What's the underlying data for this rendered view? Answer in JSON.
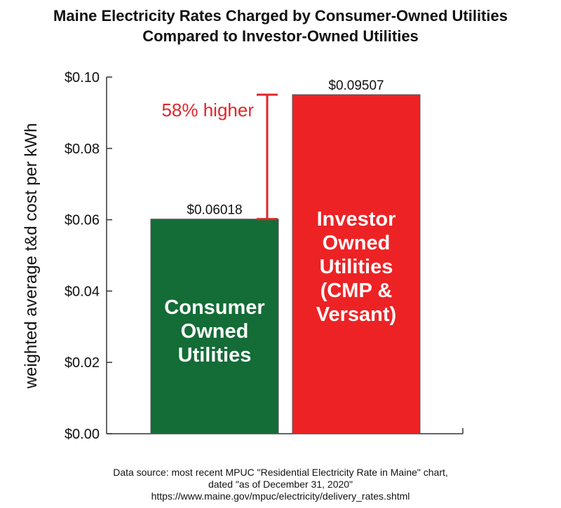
{
  "title_lines": [
    "Maine Electricity Rates Charged by Consumer-Owned Utilities",
    "Compared to Investor-Owned Utilities"
  ],
  "footer_lines": [
    "Data source: most recent MPUC \"Residential Electricity Rate in Maine\" chart,",
    "dated \"as of December 31, 2020\"",
    "https://www.maine.gov/mpuc/electricity/delivery_rates.shtml"
  ],
  "chart_data": {
    "type": "bar",
    "title": "Maine Electricity Rates Charged by Consumer-Owned Utilities Compared to Investor-Owned Utilities",
    "ylabel": "weighted average t&d cost per kWh",
    "xlabel": "",
    "ylim": [
      0,
      0.1
    ],
    "yticks": [
      {
        "value": 0.0,
        "label": "$0.00"
      },
      {
        "value": 0.02,
        "label": "$0.02"
      },
      {
        "value": 0.04,
        "label": "$0.04"
      },
      {
        "value": 0.06,
        "label": "$0.06"
      },
      {
        "value": 0.08,
        "label": "$0.08"
      },
      {
        "value": 0.1,
        "label": "$0.10"
      }
    ],
    "grid": false,
    "bars": [
      {
        "label_lines": [
          "Consumer",
          "Owned",
          "Utilities"
        ],
        "value": 0.06018,
        "value_label": "$0.06018",
        "color": "#146c37"
      },
      {
        "label_lines": [
          "Investor",
          "Owned",
          "Utilities",
          "(CMP &",
          "Versant)"
        ],
        "value": 0.09507,
        "value_label": "$0.09507",
        "color": "#ed2224"
      }
    ],
    "annotation": {
      "text": "58% higher",
      "from": 0.06018,
      "to": 0.09507,
      "color": "#e0262b"
    }
  }
}
